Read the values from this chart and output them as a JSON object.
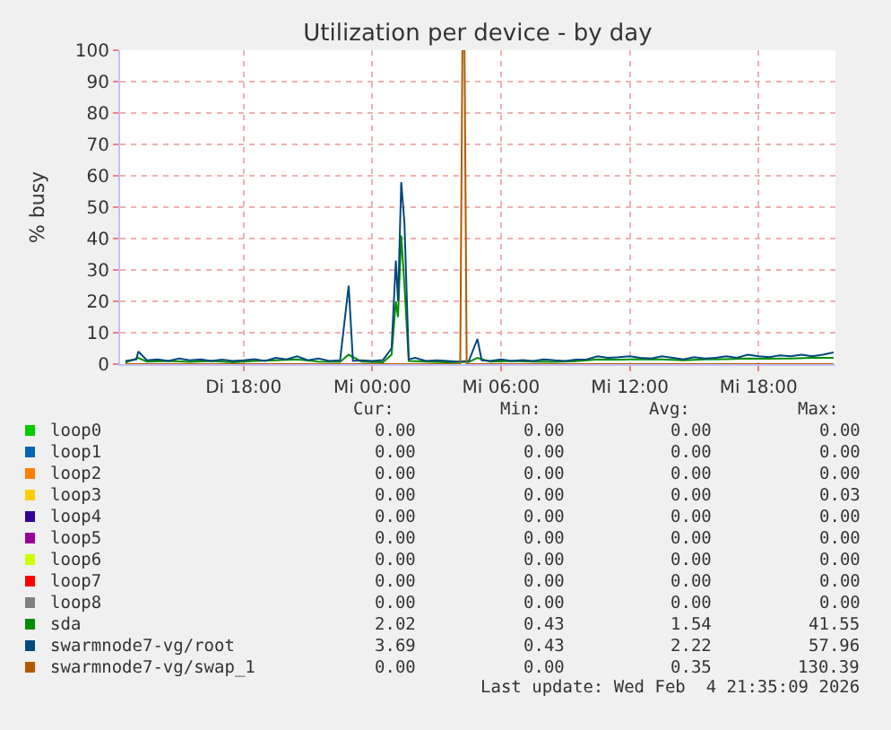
{
  "chart_data": {
    "type": "line",
    "title": "Utilization per device - by day",
    "ylabel": "% busy",
    "xlim": [
      "2026-02-03T12:15",
      "2026-02-04T21:35"
    ],
    "xticks": [
      {
        "value": "2026-02-03T18:00",
        "label": "Di 18:00"
      },
      {
        "value": "2026-02-04T00:00",
        "label": "Mi 00:00"
      },
      {
        "value": "2026-02-04T06:00",
        "label": "Mi 06:00"
      },
      {
        "value": "2026-02-04T12:00",
        "label": "Mi 12:00"
      },
      {
        "value": "2026-02-04T18:00",
        "label": "Mi 18:00"
      }
    ],
    "ylim": [
      0,
      100
    ],
    "yticks": [
      0,
      10,
      20,
      30,
      40,
      50,
      60,
      70,
      80,
      90,
      100
    ],
    "grid": true,
    "legend": "bottom",
    "marker": "none",
    "line_style": "solid",
    "series": [
      {
        "name": "loop0",
        "color": "#00cc00"
      },
      {
        "name": "loop1",
        "color": "#0066b3"
      },
      {
        "name": "loop2",
        "color": "#ff8000"
      },
      {
        "name": "loop3",
        "color": "#ffcc00"
      },
      {
        "name": "loop4",
        "color": "#330099"
      },
      {
        "name": "loop5",
        "color": "#990099"
      },
      {
        "name": "loop6",
        "color": "#ccff00"
      },
      {
        "name": "loop7",
        "color": "#ff0000"
      },
      {
        "name": "loop8",
        "color": "#808080"
      },
      {
        "name": "sda",
        "color": "#008f00",
        "x": [
          "2026-02-03T12:30",
          "2026-02-03T13:06",
          "2026-02-03T13:30",
          "2026-02-03T14:30",
          "2026-02-03T15:30",
          "2026-02-03T16:30",
          "2026-02-03T17:30",
          "2026-02-03T18:30",
          "2026-02-03T19:30",
          "2026-02-03T20:30",
          "2026-02-03T21:30",
          "2026-02-03T22:30",
          "2026-02-03T22:54",
          "2026-02-03T23:30",
          "2026-02-04T00:30",
          "2026-02-04T00:54",
          "2026-02-04T01:06",
          "2026-02-04T01:12",
          "2026-02-04T01:21",
          "2026-02-04T01:30",
          "2026-02-04T01:42",
          "2026-02-04T02:30",
          "2026-02-04T03:30",
          "2026-02-04T04:30",
          "2026-02-04T04:54",
          "2026-02-04T05:30",
          "2026-02-04T06:30",
          "2026-02-04T07:30",
          "2026-02-04T08:30",
          "2026-02-04T09:30",
          "2026-02-04T10:30",
          "2026-02-04T11:30",
          "2026-02-04T12:30",
          "2026-02-04T13:30",
          "2026-02-04T14:30",
          "2026-02-04T15:30",
          "2026-02-04T16:30",
          "2026-02-04T17:30",
          "2026-02-04T18:30",
          "2026-02-04T19:30",
          "2026-02-04T20:30",
          "2026-02-04T21:30"
        ],
        "values": [
          0.5,
          2,
          0.8,
          1,
          0.7,
          1,
          0.6,
          1,
          1.2,
          1.5,
          0.8,
          0.7,
          3,
          0.8,
          0.6,
          3,
          20,
          15,
          41,
          25,
          1,
          0.8,
          0.6,
          0.7,
          2,
          0.8,
          1,
          0.8,
          0.7,
          0.9,
          1.5,
          1.4,
          1.6,
          1.5,
          1.2,
          1.5,
          1.6,
          1.8,
          1.7,
          1.8,
          2,
          2
        ]
      },
      {
        "name": "swarmnode7-vg/root",
        "color": "#00487d",
        "x": [
          "2026-02-03T12:30",
          "2026-02-03T13:00",
          "2026-02-03T13:06",
          "2026-02-03T13:30",
          "2026-02-03T14:00",
          "2026-02-03T14:30",
          "2026-02-03T15:00",
          "2026-02-03T15:30",
          "2026-02-03T16:00",
          "2026-02-03T16:30",
          "2026-02-03T17:00",
          "2026-02-03T17:30",
          "2026-02-03T18:00",
          "2026-02-03T18:30",
          "2026-02-03T19:00",
          "2026-02-03T19:30",
          "2026-02-03T20:00",
          "2026-02-03T20:30",
          "2026-02-03T21:00",
          "2026-02-03T21:30",
          "2026-02-03T22:00",
          "2026-02-03T22:30",
          "2026-02-03T22:54",
          "2026-02-03T23:06",
          "2026-02-03T23:30",
          "2026-02-04T00:00",
          "2026-02-04T00:30",
          "2026-02-04T00:54",
          "2026-02-04T01:06",
          "2026-02-04T01:12",
          "2026-02-04T01:21",
          "2026-02-04T01:30",
          "2026-02-04T01:42",
          "2026-02-04T02:00",
          "2026-02-04T02:30",
          "2026-02-04T03:00",
          "2026-02-04T03:30",
          "2026-02-04T04:00",
          "2026-02-04T04:30",
          "2026-02-04T04:54",
          "2026-02-04T05:06",
          "2026-02-04T05:30",
          "2026-02-04T06:00",
          "2026-02-04T06:30",
          "2026-02-04T07:00",
          "2026-02-04T07:30",
          "2026-02-04T08:00",
          "2026-02-04T08:30",
          "2026-02-04T09:00",
          "2026-02-04T09:30",
          "2026-02-04T10:00",
          "2026-02-04T10:30",
          "2026-02-04T11:00",
          "2026-02-04T11:30",
          "2026-02-04T12:00",
          "2026-02-04T12:30",
          "2026-02-04T13:00",
          "2026-02-04T13:30",
          "2026-02-04T14:00",
          "2026-02-04T14:30",
          "2026-02-04T15:00",
          "2026-02-04T15:30",
          "2026-02-04T16:00",
          "2026-02-04T16:30",
          "2026-02-04T17:00",
          "2026-02-04T17:30",
          "2026-02-04T18:00",
          "2026-02-04T18:30",
          "2026-02-04T19:00",
          "2026-02-04T19:30",
          "2026-02-04T20:00",
          "2026-02-04T20:30",
          "2026-02-04T21:00",
          "2026-02-04T21:30"
        ],
        "values": [
          1.0,
          1.5,
          4.0,
          1.2,
          1.5,
          1.0,
          1.8,
          1.2,
          1.5,
          1.0,
          1.4,
          1.0,
          1.2,
          1.6,
          1.0,
          2.0,
          1.5,
          2.5,
          1.2,
          1.8,
          1.0,
          1.2,
          25,
          1.0,
          1.2,
          1.0,
          1.3,
          5,
          33,
          20,
          58,
          45,
          1.5,
          2.0,
          1.0,
          1.2,
          1.0,
          0.8,
          1.0,
          8,
          1.2,
          1.0,
          1.5,
          1.0,
          1.3,
          1.0,
          1.5,
          1.2,
          1.0,
          1.4,
          1.5,
          2.5,
          2.0,
          2.2,
          2.5,
          2.0,
          1.8,
          2.5,
          2.0,
          1.5,
          2.2,
          1.8,
          2.0,
          2.5,
          2.0,
          3.0,
          2.5,
          2.2,
          2.8,
          2.5,
          3.0,
          2.5,
          3.0,
          3.7
        ]
      },
      {
        "name": "swarmnode7-vg/swap_1",
        "color": "#b35a00",
        "x": [
          "2026-02-03T12:30",
          "2026-02-04T04:06",
          "2026-02-04T04:12",
          "2026-02-04T04:18",
          "2026-02-04T04:24",
          "2026-02-04T21:30"
        ],
        "values": [
          0,
          0,
          100,
          100,
          0,
          0
        ]
      }
    ],
    "annotations": [
      "Cur:",
      "Min:",
      "Avg:",
      "Max:",
      "0.00",
      "0.00",
      "0.00",
      "0.00",
      "0.00",
      "0.00",
      "0.00",
      "0.00",
      "0.00",
      "0.00",
      "0.00",
      "0.00",
      "0.00",
      "0.00",
      "0.00",
      "0.03",
      "0.00",
      "0.00",
      "0.00",
      "0.00",
      "0.00",
      "0.00",
      "0.00",
      "0.00",
      "0.00",
      "0.00",
      "0.00",
      "0.00",
      "0.00",
      "0.00",
      "0.00",
      "0.00",
      "0.00",
      "0.00",
      "0.00",
      "0.00",
      "2.02",
      "0.43",
      "1.54",
      "41.55",
      "3.69",
      "0.43",
      "2.22",
      "57.96",
      "0.00",
      "0.00",
      "0.35",
      "130.39",
      "Last update: Wed Feb  4 21:35:09 2026"
    ]
  }
}
